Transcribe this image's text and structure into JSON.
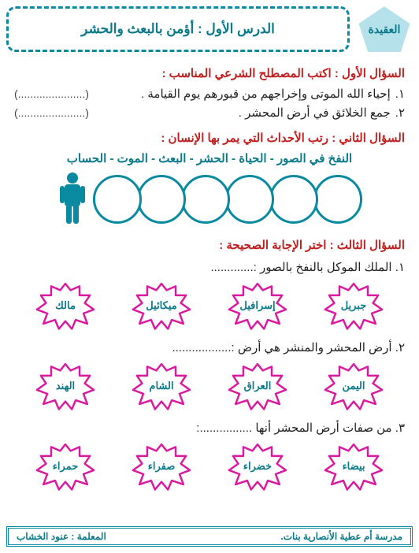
{
  "header": {
    "category": "العقيدة",
    "title": "الدرس الأول : أؤمن بالبعث والحشر"
  },
  "q1": {
    "prompt": "السؤال الأول : اكتب المصطلح الشرعي المناسب :",
    "items": [
      {
        "num": "١.",
        "text": "إحياء الله الموتى وإخراجهم من قبورهم يوم القيامة .",
        "blank": "(......................)"
      },
      {
        "num": "٢.",
        "text": "جمع الخلائق في أرض المحشر .",
        "blank": "(......................)"
      }
    ]
  },
  "q2": {
    "prompt": "السؤال الثاني : رتب الأحداث التي يمر بها الإنسان :",
    "word_bank": "النفخ في الصور - الحياة - الحشر - البعث - الموت - الحساب",
    "circle_count": 6,
    "circle_color": "#0a8aa0",
    "person_color": "#0a8aa0"
  },
  "q3": {
    "prompt": "السؤال الثالث : اختر الإجابة الصحيحة  :",
    "splat_stroke": "#d91aa0",
    "splat_fill": "#ffffff",
    "questions": [
      {
        "num": "١.",
        "text": "الملك الموكل بالنفخ بالصور",
        "dots": ":.............",
        "options": [
          "جبريل",
          "إسرافيل",
          "ميكائيل",
          "مالك"
        ]
      },
      {
        "num": "٢.",
        "text": "أرض المحشر والمنشر هي أرض",
        "dots": ":..................",
        "options": [
          "اليمن",
          "العراق",
          "الشام",
          "الهند"
        ]
      },
      {
        "num": "٣.",
        "text": "من صفات أرض المحشر أنها",
        "dots": "................:",
        "options": [
          "بيضاء",
          "خضراء",
          "صفراء",
          "حمراء"
        ]
      }
    ]
  },
  "footer": {
    "school": "مدرسة أم عطية الأنصارية بنات.",
    "teacher": "المعلمة : عنود الخشاب"
  }
}
